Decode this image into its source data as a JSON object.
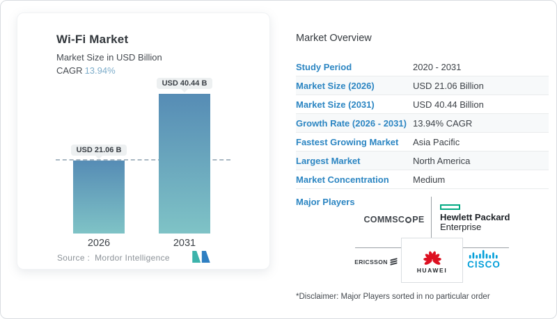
{
  "chart_data": {
    "type": "bar",
    "title": "Wi-Fi Market",
    "subtitle": "Market Size in USD Billion",
    "cagr_label": "CAGR",
    "cagr_value": "13.94%",
    "categories": [
      "2026",
      "2031"
    ],
    "values": [
      21.06,
      40.44
    ],
    "value_labels": [
      "USD 21.06 B",
      "USD 40.44 B"
    ],
    "unit": "USD Billion",
    "ylim": [
      0,
      40.44
    ],
    "grid": false,
    "reference_line": {
      "value": 21.06,
      "style": "dashed"
    },
    "bar_gradient_top": "#568cb5",
    "bar_gradient_bottom": "#7fc3c6",
    "source_label": "Source :",
    "source_name": "Mordor Intelligence"
  },
  "overview": {
    "title": "Market Overview",
    "accent_color": "#2b85c2",
    "rows": [
      {
        "label": "Study Period",
        "value": "2020 - 2031"
      },
      {
        "label": "Market Size (2026)",
        "value": "USD 21.06 Billion"
      },
      {
        "label": "Market Size (2031)",
        "value": "USD 40.44 Billion"
      },
      {
        "label": "Growth Rate (2026 - 2031)",
        "value": "13.94% CAGR"
      },
      {
        "label": "Fastest Growing Market",
        "value": "Asia Pacific"
      },
      {
        "label": "Largest Market",
        "value": "North America"
      },
      {
        "label": "Market Concentration",
        "value": "Medium"
      }
    ],
    "major_players_label": "Major Players",
    "players": {
      "commscope": {
        "name": "CommScope",
        "text_left": "COMMSC",
        "text_right": "PE"
      },
      "hpe": {
        "name": "Hewlett Packard Enterprise",
        "line1": "Hewlett Packard",
        "line2": "Enterprise",
        "accent": "#01a982"
      },
      "ericsson": {
        "name": "Ericsson",
        "text": "ERICSSON"
      },
      "huawei": {
        "name": "Huawei",
        "text": "HUAWEI",
        "accent": "#dd1021"
      },
      "cisco": {
        "name": "Cisco",
        "text": "CISCO",
        "accent": "#049fd9"
      }
    },
    "disclaimer": "*Disclaimer: Major Players sorted in no particular order"
  }
}
